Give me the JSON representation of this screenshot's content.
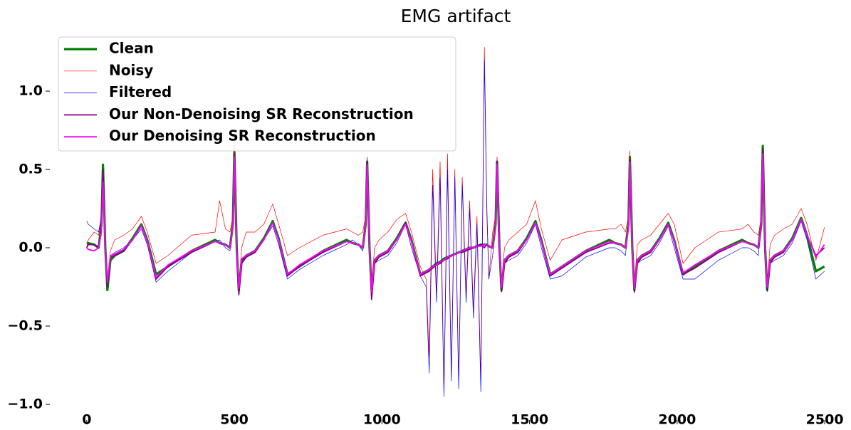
{
  "chart_data": {
    "type": "line",
    "title": "EMG artifact",
    "x": [
      0,
      5,
      25,
      40,
      50,
      55,
      63,
      70,
      80,
      95,
      125,
      155,
      185,
      205,
      235,
      275,
      355,
      435,
      450,
      470,
      485,
      495,
      500,
      508,
      515,
      525,
      540,
      570,
      600,
      630,
      650,
      680,
      720,
      800,
      880,
      900,
      920,
      935,
      945,
      950,
      958,
      965,
      975,
      990,
      1020,
      1050,
      1080,
      1100,
      1130,
      1150,
      1160,
      1172,
      1185,
      1197,
      1210,
      1222,
      1235,
      1247,
      1260,
      1272,
      1285,
      1297,
      1310,
      1322,
      1335,
      1347,
      1355,
      1362,
      1375,
      1385,
      1390,
      1398,
      1405,
      1415,
      1430,
      1460,
      1490,
      1520,
      1540,
      1570,
      1610,
      1690,
      1770,
      1790,
      1810,
      1825,
      1835,
      1840,
      1848,
      1855,
      1865,
      1880,
      1910,
      1940,
      1970,
      1990,
      2020,
      2060,
      2140,
      2220,
      2240,
      2260,
      2275,
      2285,
      2290,
      2298,
      2305,
      2315,
      2330,
      2360,
      2390,
      2420,
      2440,
      2470,
      2499
    ],
    "series": [
      {
        "name": "Clean",
        "color": "#008000",
        "width": 3.2,
        "values": [
          0.03,
          0.03,
          0.02,
          0.0,
          0.15,
          0.53,
          0.0,
          -0.27,
          -0.08,
          -0.05,
          -0.02,
          0.06,
          0.15,
          0.05,
          -0.17,
          -0.12,
          -0.02,
          0.05,
          0.03,
          0.02,
          0.0,
          0.15,
          0.62,
          0.0,
          -0.27,
          -0.08,
          -0.05,
          -0.02,
          0.06,
          0.17,
          0.06,
          -0.17,
          -0.12,
          -0.02,
          0.05,
          0.03,
          0.02,
          0.0,
          0.15,
          0.55,
          0.0,
          -0.27,
          -0.08,
          -0.05,
          -0.02,
          0.06,
          0.16,
          0.05,
          -0.17,
          -0.15,
          -0.14,
          -0.12,
          -0.1,
          -0.09,
          -0.07,
          -0.06,
          -0.05,
          -0.04,
          -0.03,
          -0.02,
          -0.01,
          0.0,
          0.0,
          0.01,
          0.02,
          0.02,
          0.02,
          0.01,
          0.0,
          0.15,
          0.55,
          0.0,
          -0.27,
          -0.08,
          -0.05,
          -0.02,
          0.06,
          0.17,
          0.05,
          -0.17,
          -0.12,
          -0.02,
          0.05,
          0.03,
          0.02,
          0.0,
          0.15,
          0.58,
          0.0,
          -0.27,
          -0.08,
          -0.05,
          -0.02,
          0.06,
          0.16,
          0.05,
          -0.17,
          -0.12,
          -0.02,
          0.05,
          0.03,
          0.02,
          0.0,
          0.15,
          0.65,
          0.0,
          -0.27,
          -0.08,
          -0.05,
          -0.02,
          0.06,
          0.19,
          0.08,
          -0.15,
          -0.12
        ]
      },
      {
        "name": "Noisy",
        "color": "#ff0000",
        "width": 0.7,
        "values": [
          0.0,
          0.05,
          0.1,
          0.08,
          0.2,
          0.5,
          0.02,
          -0.25,
          -0.02,
          0.05,
          0.08,
          0.12,
          0.2,
          0.1,
          -0.1,
          -0.05,
          0.08,
          0.1,
          0.3,
          0.12,
          0.1,
          0.2,
          0.68,
          0.02,
          -0.25,
          0.0,
          0.1,
          0.1,
          0.15,
          0.28,
          0.15,
          -0.05,
          0.0,
          0.08,
          0.12,
          0.1,
          0.08,
          0.1,
          0.2,
          0.58,
          0.02,
          -0.25,
          0.0,
          0.05,
          0.1,
          0.18,
          0.22,
          0.1,
          -0.12,
          -0.2,
          -0.7,
          0.5,
          -0.3,
          0.55,
          -0.9,
          0.6,
          -0.8,
          0.5,
          -0.85,
          0.45,
          -0.3,
          0.3,
          -0.4,
          0.2,
          -0.85,
          1.28,
          0.3,
          -0.2,
          0.1,
          0.2,
          0.58,
          0.02,
          -0.24,
          0.0,
          0.05,
          0.1,
          0.15,
          0.3,
          0.12,
          -0.08,
          0.05,
          0.1,
          0.12,
          0.12,
          0.15,
          0.1,
          0.2,
          0.62,
          0.02,
          -0.25,
          0.02,
          0.05,
          0.08,
          0.15,
          0.22,
          0.15,
          -0.1,
          0.0,
          0.1,
          0.12,
          0.15,
          0.1,
          0.08,
          0.2,
          0.62,
          0.02,
          -0.25,
          0.02,
          0.08,
          0.12,
          0.15,
          0.25,
          0.15,
          -0.08,
          0.13
        ]
      },
      {
        "name": "Filtered",
        "color": "#0000ff",
        "width": 0.7,
        "values": [
          0.17,
          0.15,
          0.12,
          0.1,
          0.2,
          0.5,
          0.0,
          -0.25,
          -0.05,
          -0.03,
          0.0,
          0.05,
          0.12,
          0.02,
          -0.22,
          -0.15,
          -0.03,
          0.04,
          0.05,
          0.0,
          -0.02,
          0.15,
          0.6,
          0.0,
          -0.28,
          -0.08,
          -0.05,
          -0.02,
          0.05,
          0.14,
          0.02,
          -0.2,
          -0.14,
          -0.05,
          0.02,
          0.05,
          0.02,
          -0.02,
          0.15,
          0.57,
          0.0,
          -0.3,
          -0.1,
          -0.08,
          -0.05,
          0.03,
          0.15,
          0.0,
          -0.18,
          -0.25,
          -0.8,
          0.4,
          -0.35,
          0.45,
          -0.95,
          0.5,
          -0.85,
          0.45,
          -0.9,
          0.4,
          -0.35,
          0.25,
          -0.45,
          0.15,
          -0.92,
          1.2,
          0.25,
          -0.2,
          -0.05,
          0.15,
          0.55,
          0.0,
          -0.27,
          -0.1,
          -0.08,
          -0.05,
          0.03,
          0.15,
          0.0,
          -0.2,
          -0.18,
          -0.06,
          0.0,
          0.0,
          -0.02,
          -0.05,
          0.15,
          0.55,
          0.0,
          -0.29,
          -0.1,
          -0.08,
          -0.05,
          0.03,
          0.14,
          0.0,
          -0.2,
          -0.2,
          -0.08,
          0.0,
          0.0,
          -0.02,
          -0.05,
          0.15,
          0.6,
          0.0,
          -0.28,
          -0.1,
          -0.08,
          -0.05,
          0.03,
          0.17,
          0.05,
          -0.2,
          -0.15
        ]
      },
      {
        "name": "Our Non-Denoising SR Reconstruction",
        "color": "#800080",
        "width": 1.8,
        "values": [
          0.0,
          0.02,
          0.02,
          0.0,
          0.12,
          0.5,
          0.0,
          -0.25,
          -0.06,
          -0.05,
          -0.02,
          0.05,
          0.14,
          0.04,
          -0.2,
          -0.12,
          -0.03,
          0.04,
          0.03,
          0.02,
          0.0,
          0.13,
          0.6,
          0.0,
          -0.3,
          -0.1,
          -0.06,
          -0.03,
          0.05,
          0.16,
          0.05,
          -0.18,
          -0.12,
          -0.03,
          0.04,
          0.03,
          0.02,
          0.0,
          0.15,
          0.55,
          0.0,
          -0.33,
          -0.1,
          -0.06,
          -0.03,
          0.05,
          0.16,
          0.04,
          -0.18,
          -0.16,
          -0.15,
          -0.13,
          -0.11,
          -0.1,
          -0.08,
          -0.07,
          -0.05,
          -0.04,
          -0.03,
          -0.03,
          -0.02,
          -0.01,
          0.0,
          0.01,
          0.02,
          0.0,
          0.02,
          0.01,
          0.0,
          0.13,
          0.55,
          0.0,
          -0.28,
          -0.1,
          -0.06,
          -0.03,
          0.05,
          0.16,
          0.04,
          -0.18,
          -0.13,
          -0.03,
          0.03,
          0.03,
          0.02,
          0.0,
          0.13,
          0.56,
          0.0,
          -0.28,
          -0.1,
          -0.06,
          -0.03,
          0.05,
          0.15,
          0.04,
          -0.17,
          -0.13,
          -0.03,
          0.04,
          0.03,
          0.02,
          0.0,
          0.15,
          0.63,
          0.0,
          -0.26,
          -0.1,
          -0.06,
          -0.03,
          0.05,
          0.18,
          0.08,
          -0.05,
          0.0
        ]
      },
      {
        "name": "Our Denoising SR Reconstruction",
        "color": "#ff00ff",
        "width": 1.8,
        "values": [
          0.0,
          -0.01,
          -0.02,
          0.0,
          0.1,
          0.42,
          0.0,
          -0.22,
          -0.05,
          -0.04,
          -0.01,
          0.05,
          0.14,
          0.04,
          -0.19,
          -0.11,
          -0.02,
          0.04,
          0.03,
          0.02,
          0.0,
          0.12,
          0.58,
          0.0,
          -0.26,
          -0.07,
          -0.05,
          -0.02,
          0.05,
          0.16,
          0.05,
          -0.17,
          -0.11,
          -0.02,
          0.04,
          0.03,
          0.02,
          0.0,
          0.14,
          0.53,
          0.0,
          -0.28,
          -0.08,
          -0.05,
          -0.02,
          0.05,
          0.15,
          0.04,
          -0.17,
          -0.15,
          -0.14,
          -0.12,
          -0.11,
          -0.09,
          -0.08,
          -0.06,
          -0.05,
          -0.04,
          -0.03,
          -0.02,
          -0.01,
          0.0,
          0.0,
          0.01,
          0.01,
          0.02,
          0.02,
          0.01,
          0.0,
          0.12,
          0.53,
          0.0,
          -0.25,
          -0.08,
          -0.05,
          -0.02,
          0.05,
          0.16,
          0.04,
          -0.17,
          -0.12,
          -0.02,
          0.04,
          0.03,
          0.02,
          0.0,
          0.12,
          0.55,
          0.0,
          -0.26,
          -0.08,
          -0.05,
          -0.02,
          0.05,
          0.15,
          0.04,
          -0.16,
          -0.11,
          -0.02,
          0.04,
          0.03,
          0.02,
          0.0,
          0.14,
          0.6,
          0.0,
          -0.25,
          -0.08,
          -0.05,
          -0.02,
          0.05,
          0.18,
          0.08,
          -0.06,
          0.02
        ]
      }
    ],
    "xlim": [
      -125,
      2560
    ],
    "ylim": [
      -1.1,
      1.4
    ],
    "xticks": [
      0,
      500,
      1000,
      1500,
      2000,
      2500
    ],
    "yticks": [
      {
        "value": -1.0,
        "label": "−1.0"
      },
      {
        "value": -0.5,
        "label": "−0.5"
      },
      {
        "value": 0.0,
        "label": "0.0"
      },
      {
        "value": 0.5,
        "label": "0.5"
      },
      {
        "value": 1.0,
        "label": "1.0"
      }
    ],
    "grid": false,
    "legend": "upper left"
  }
}
